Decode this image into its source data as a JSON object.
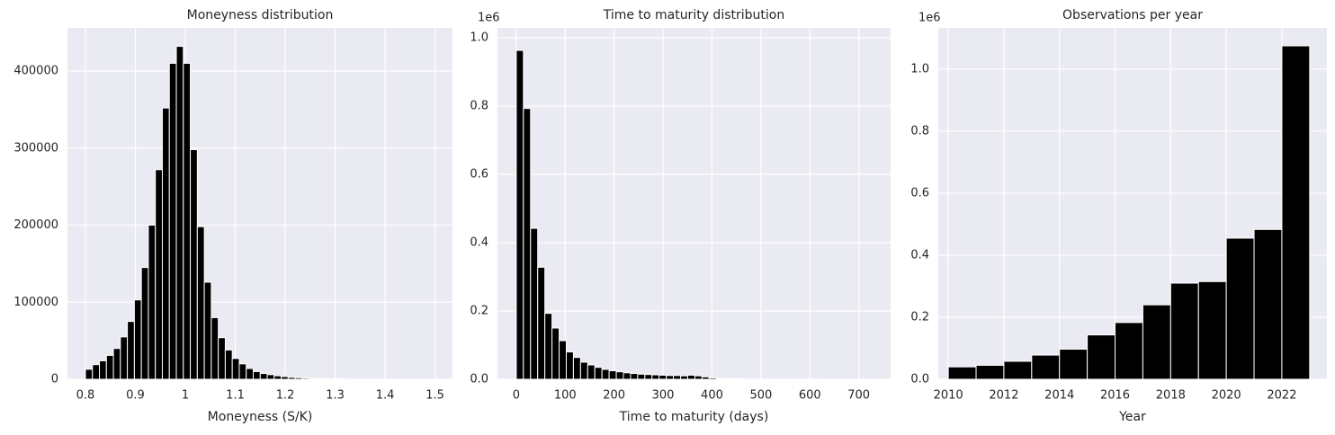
{
  "chart_data": [
    {
      "type": "histogram",
      "title": "Moneyness distribution",
      "xlabel": "Moneyness (S/K)",
      "color": "#000000",
      "bins": [
        0.8,
        0.814,
        0.828,
        0.842,
        0.856,
        0.87,
        0.884,
        0.898,
        0.912,
        0.926,
        0.94,
        0.954,
        0.968,
        0.982,
        0.996,
        1.01,
        1.024,
        1.038,
        1.052,
        1.066,
        1.08,
        1.094,
        1.108,
        1.122,
        1.136,
        1.15,
        1.164,
        1.178,
        1.192,
        1.206,
        1.22,
        1.234,
        1.248,
        1.262,
        1.276,
        1.29,
        1.304,
        1.318,
        1.332,
        1.346,
        1.36,
        1.374,
        1.388,
        1.402,
        1.416,
        1.43,
        1.444,
        1.458,
        1.472,
        1.486,
        1.5
      ],
      "counts": [
        13000,
        19000,
        24000,
        31000,
        40000,
        55000,
        75000,
        103000,
        145000,
        200000,
        272000,
        352000,
        410000,
        432000,
        410000,
        298000,
        198000,
        126000,
        80000,
        54000,
        38000,
        27000,
        20000,
        14000,
        10000,
        7500,
        6000,
        4500,
        3500,
        2500,
        2000,
        1500,
        1200,
        1000,
        800,
        600,
        500,
        400,
        300,
        250,
        200,
        150,
        120,
        100,
        80,
        60,
        50,
        40,
        30,
        20
      ],
      "xlim": [
        0.764,
        1.535
      ],
      "xticks": [
        0.8,
        0.9,
        1.0,
        1.1,
        1.2,
        1.3,
        1.4,
        1.5
      ],
      "ylim": [
        0,
        456000
      ],
      "yticks": [
        0,
        100000,
        200000,
        300000,
        400000
      ],
      "grid": true
    },
    {
      "type": "histogram",
      "title": "Time to maturity distribution",
      "xlabel": "Time to maturity (days)",
      "offset_text": "1e6",
      "color": "#000000",
      "bins": [
        0,
        14.6,
        29.2,
        43.8,
        58.4,
        73,
        87.6,
        102.2,
        116.8,
        131.4,
        146,
        160.6,
        175.2,
        189.8,
        204.4,
        219,
        233.6,
        248.2,
        262.8,
        277.4,
        292,
        306.6,
        321.2,
        335.8,
        350.4,
        365,
        379.6,
        394.2,
        408.8,
        423.4,
        438,
        452.6,
        467.2,
        481.8,
        496.4,
        511,
        525.6,
        540.2,
        554.8,
        569.4,
        584,
        598.6,
        613.2,
        627.8,
        642.4,
        657,
        671.6,
        686.2,
        700.8,
        715.4,
        730
      ],
      "counts": [
        963000,
        793000,
        442000,
        328000,
        193000,
        150000,
        113000,
        80000,
        64000,
        50000,
        42000,
        35000,
        29000,
        25000,
        22000,
        19000,
        17000,
        15000,
        14000,
        13000,
        12000,
        11000,
        11000,
        10000,
        12000,
        10000,
        7000,
        4000,
        2500,
        2000,
        1500,
        1200,
        1000,
        900,
        800,
        700,
        600,
        500,
        400,
        400,
        300,
        300,
        250,
        200,
        200,
        150,
        150,
        100,
        100,
        100
      ],
      "xlim": [
        -38.4,
        765
      ],
      "xticks": [
        0,
        100,
        200,
        300,
        400,
        500,
        600,
        700
      ],
      "ylim": [
        0,
        1029000
      ],
      "yticks": [
        {
          "value": 0,
          "label": "0.0"
        },
        {
          "value": 200000,
          "label": "0.2"
        },
        {
          "value": 400000,
          "label": "0.4"
        },
        {
          "value": 600000,
          "label": "0.6"
        },
        {
          "value": 800000,
          "label": "0.8"
        },
        {
          "value": 1000000,
          "label": "1.0"
        }
      ],
      "grid": true
    },
    {
      "type": "histogram",
      "title": "Observations per year",
      "xlabel": "Year",
      "offset_text": "1e6",
      "color": "#000000",
      "bins": [
        2010,
        2011,
        2012,
        2013,
        2014,
        2015,
        2016,
        2017,
        2018,
        2019,
        2020,
        2021,
        2022,
        2023
      ],
      "counts": [
        40000,
        45000,
        58000,
        78000,
        97000,
        143000,
        183000,
        240000,
        310000,
        315000,
        455000,
        483000,
        1075000
      ],
      "xlim": [
        2009.64,
        2023.62
      ],
      "xticks": [
        2010,
        2012,
        2014,
        2016,
        2018,
        2020,
        2022
      ],
      "ylim": [
        0,
        1133000
      ],
      "yticks": [
        {
          "value": 0,
          "label": "0.0"
        },
        {
          "value": 200000,
          "label": "0.2"
        },
        {
          "value": 400000,
          "label": "0.4"
        },
        {
          "value": 600000,
          "label": "0.6"
        },
        {
          "value": 800000,
          "label": "0.8"
        },
        {
          "value": 1000000,
          "label": "1.0"
        }
      ],
      "grid": true
    }
  ]
}
